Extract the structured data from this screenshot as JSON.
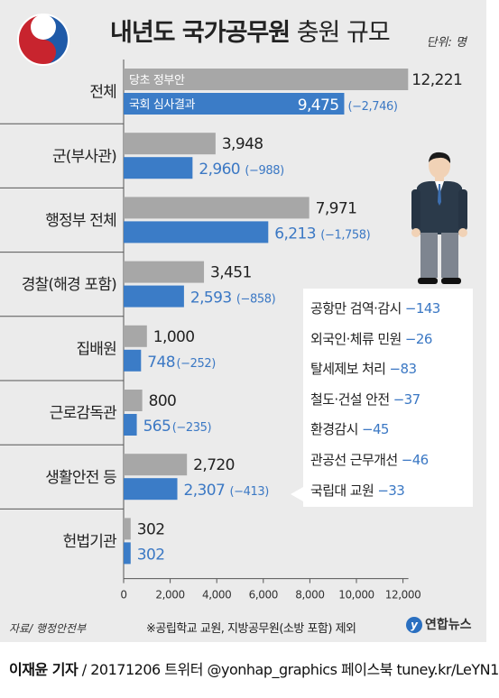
{
  "title": {
    "bold": "내년도 국가공무원",
    "light": "충원 규모"
  },
  "unit": "단위: 명",
  "legend": {
    "gov": "당초 정부안",
    "assembly": "국회 심사결과"
  },
  "colors": {
    "gov": "#a7a7a7",
    "assembly": "#3b7cc7",
    "delta": "#3b78c4"
  },
  "chart_data": {
    "type": "bar",
    "orientation": "horizontal",
    "categories": [
      "전체",
      "군(부사관)",
      "행정부 전체",
      "경찰(해경 포함)",
      "집배원",
      "근로감독관",
      "생활안전 등",
      "헌법기관"
    ],
    "series": [
      {
        "name": "당초 정부안",
        "values": [
          12221,
          3948,
          7971,
          3451,
          1000,
          800,
          2720,
          302
        ]
      },
      {
        "name": "국회 심사결과",
        "values": [
          9475,
          2960,
          6213,
          2593,
          748,
          565,
          2307,
          302
        ]
      }
    ],
    "value_labels": {
      "gov": [
        "12,221",
        "3,948",
        "7,971",
        "3,451",
        "1,000",
        "800",
        "2,720",
        "302"
      ],
      "assembly": [
        "9,475",
        "2,960",
        "6,213",
        "2,593",
        "748",
        "565",
        "2,307",
        "302"
      ]
    },
    "deltas": [
      "(−2,746)",
      "(−988)",
      "(−1,758)",
      "(−858)",
      "(−252)",
      "(−235)",
      "(−413)",
      ""
    ],
    "xticks": [
      "0",
      "2,000",
      "4,000",
      "6,000",
      "8,000",
      "10,000",
      "12,000"
    ],
    "xtick_values": [
      0,
      2000,
      4000,
      6000,
      8000,
      10000,
      12000
    ],
    "xlim": [
      0,
      12800
    ],
    "grid": false
  },
  "callout": {
    "items": [
      {
        "label": "공항만 검역·감시",
        "delta": "−143"
      },
      {
        "label": "외국인·체류 민원",
        "delta": "−26"
      },
      {
        "label": "탈세제보 처리",
        "delta": "−83"
      },
      {
        "label": "철도·건설 안전",
        "delta": "−37"
      },
      {
        "label": "환경감시",
        "delta": "−45"
      },
      {
        "label": "관공선 근무개선",
        "delta": "−46"
      },
      {
        "label": "국립대 교원",
        "delta": "−33"
      }
    ]
  },
  "footer": {
    "source": "자료/ 행정안전부",
    "note": "※공립학교 교원, 지방공무원(소방 포함) 제외",
    "logo_mark": "y",
    "logo_text": "연합뉴스"
  },
  "credit": {
    "author": "이재윤 기자",
    "rest": " / 20171206  트위터 @yonhap_graphics  페이스북 tuney.kr/LeYN1"
  }
}
